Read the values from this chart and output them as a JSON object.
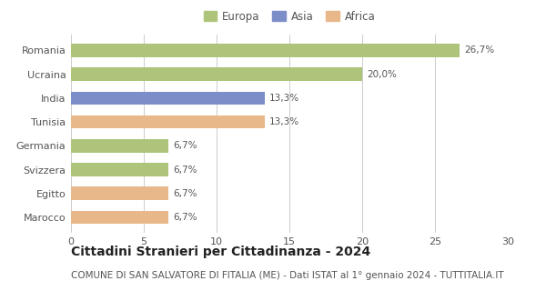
{
  "categories": [
    "Romania",
    "Ucraina",
    "India",
    "Tunisia",
    "Germania",
    "Svizzera",
    "Egitto",
    "Marocco"
  ],
  "values": [
    26.7,
    20.0,
    13.3,
    13.3,
    6.7,
    6.7,
    6.7,
    6.7
  ],
  "labels": [
    "26,7%",
    "20,0%",
    "13,3%",
    "13,3%",
    "6,7%",
    "6,7%",
    "6,7%",
    "6,7%"
  ],
  "colors": [
    "#adc47a",
    "#adc47a",
    "#7b8ec8",
    "#e8b88a",
    "#adc47a",
    "#adc47a",
    "#e8b88a",
    "#e8b88a"
  ],
  "legend": [
    {
      "label": "Europa",
      "color": "#adc47a"
    },
    {
      "label": "Asia",
      "color": "#7b8ec8"
    },
    {
      "label": "Africa",
      "color": "#e8b88a"
    }
  ],
  "xlim": [
    0,
    30
  ],
  "xticks": [
    0,
    5,
    10,
    15,
    20,
    25,
    30
  ],
  "title": "Cittadini Stranieri per Cittadinanza - 2024",
  "subtitle": "COMUNE DI SAN SALVATORE DI FITALIA (ME) - Dati ISTAT al 1° gennaio 2024 - TUTTITALIA.IT",
  "title_fontsize": 10,
  "subtitle_fontsize": 7.5,
  "background_color": "#ffffff",
  "grid_color": "#cccccc",
  "bar_label_fontsize": 7.5,
  "ytick_fontsize": 8,
  "xtick_fontsize": 8,
  "bar_height": 0.55,
  "legend_fontsize": 8.5
}
